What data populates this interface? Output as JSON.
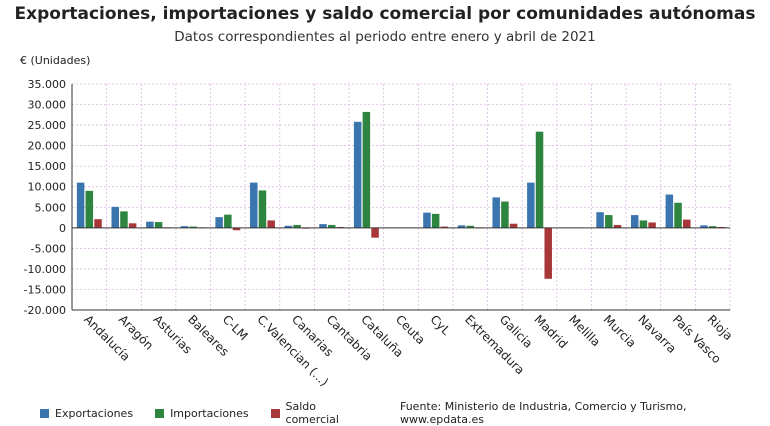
{
  "title": "Exportaciones, importaciones y saldo comercial por comunidades autónomas",
  "subtitle": "Datos correspondientes al periodo entre enero y abril de 2021",
  "source": "Fuente: Ministerio de Industria, Comercio y Turismo, www.epdata.es",
  "colors": {
    "exportaciones": "#3b75af",
    "importaciones": "#2e8540",
    "saldo": "#a8373a",
    "grid": "#d6aede",
    "axis": "#333333"
  },
  "chart_data": {
    "type": "bar",
    "ylabel": "€ (Unidades)",
    "ylim": [
      -20000,
      35000
    ],
    "yticks": [
      35000,
      30000,
      25000,
      20000,
      15000,
      10000,
      5000,
      0,
      -5000,
      -10000,
      -15000,
      -20000
    ],
    "ytick_labels": [
      "35.000",
      "30.000",
      "25.000",
      "20.000",
      "15.000",
      "10.000",
      "5.000",
      "0",
      "-5.000",
      "-10.000",
      "-15.000",
      "-20.000"
    ],
    "grid": true,
    "legend_position": "bottom-left",
    "categories": [
      "Andalucía",
      "Aragón",
      "Asturias",
      "Baleares",
      "C-LM",
      "C.Valencian (...)",
      "Canarias",
      "Cantabria",
      "Cataluña",
      "Ceuta",
      "CyL",
      "Extremadura",
      "Galicia",
      "Madrid",
      "Melilla",
      "Murcia",
      "Navarra",
      "País Vasco",
      "Rioja"
    ],
    "series": [
      {
        "name": "Exportaciones",
        "values": [
          11000,
          5100,
          1500,
          400,
          2600,
          11000,
          500,
          900,
          25800,
          0,
          3700,
          600,
          7400,
          11000,
          0,
          3800,
          3100,
          8100,
          600
        ]
      },
      {
        "name": "Importaciones",
        "values": [
          9000,
          4000,
          1400,
          300,
          3200,
          9100,
          700,
          700,
          28200,
          0,
          3400,
          500,
          6400,
          23400,
          0,
          3100,
          1800,
          6100,
          400
        ]
      },
      {
        "name": "Saldo comercial",
        "values": [
          2100,
          1100,
          100,
          100,
          -600,
          1800,
          -200,
          200,
          -2400,
          0,
          300,
          100,
          1000,
          -12400,
          0,
          700,
          1300,
          2000,
          200
        ]
      }
    ]
  }
}
